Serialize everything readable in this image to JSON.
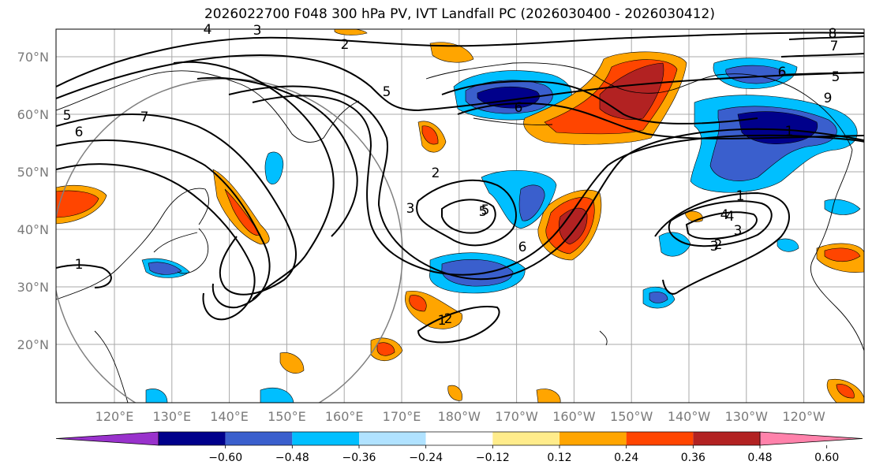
{
  "title": "2026022700 F048 300 hPa PV, IVT Landfall PC (2026030400 - 2026030412)",
  "map": {
    "lat_ticks": [
      "70°N",
      "60°N",
      "50°N",
      "40°N",
      "30°N",
      "20°N"
    ],
    "lon_ticks": [
      "120°E",
      "130°E",
      "140°E",
      "150°E",
      "160°E",
      "170°E",
      "180°W",
      "170°W",
      "160°W",
      "150°W",
      "140°W",
      "130°W",
      "120°W"
    ],
    "contour_labels": [
      "1",
      "2",
      "3",
      "4",
      "5",
      "6",
      "7",
      "5",
      "6",
      "2",
      "3",
      "5",
      "1",
      "2",
      "3",
      "4",
      "5",
      "6",
      "1",
      "2",
      "3",
      "4",
      "5",
      "6",
      "9",
      "8",
      "7",
      "1"
    ]
  },
  "colorbar": {
    "labels": [
      "−0.60",
      "−0.48",
      "−0.36",
      "−0.24",
      "−0.12",
      "0.12",
      "0.24",
      "0.36",
      "0.48",
      "0.60"
    ],
    "colors": [
      "#9932cc",
      "#00008b",
      "#3a5fcd",
      "#00bfff",
      "#b0e2ff",
      "#ffffff",
      "#ffec8b",
      "#ffa500",
      "#ff4500",
      "#b22222",
      "#ff82ab"
    ]
  },
  "colors": {
    "neg_strong": "#00008b",
    "neg_mid": "#3a5fcd",
    "neg_light": "#00bfff",
    "pos_light": "#ffa500",
    "pos_mid": "#ff4500",
    "pos_strong": "#b22222"
  }
}
